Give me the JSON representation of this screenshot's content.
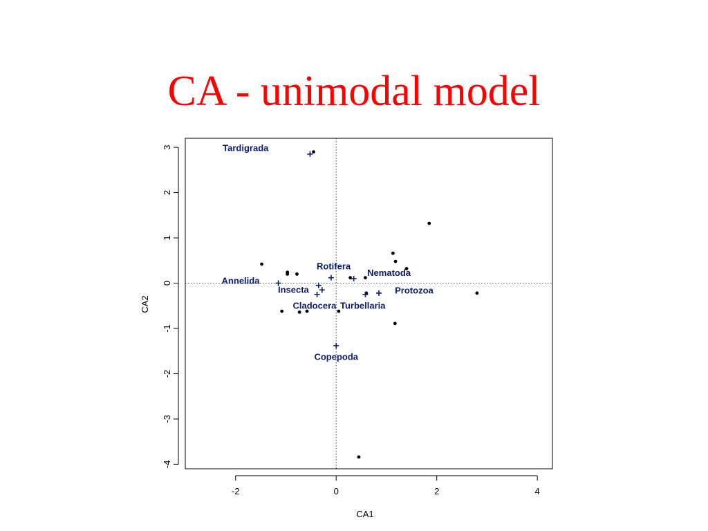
{
  "slide": {
    "title": "CA - unimodal model",
    "title_color": "#ff0000"
  },
  "chart_data": {
    "type": "scatter",
    "title": "",
    "xlabel": "CA1",
    "ylabel": "CA2",
    "xlim": [
      -3.0,
      4.3
    ],
    "ylim": [
      -4.1,
      3.2
    ],
    "x_ticks": [
      -2,
      0,
      2,
      4
    ],
    "x_tick_labels": [
      "-2",
      "0",
      "2",
      "4"
    ],
    "y_ticks": [
      -4,
      -3,
      -2,
      -1,
      0,
      1,
      2,
      3
    ],
    "y_tick_labels": [
      "-4",
      "-3",
      "-2",
      "-1",
      "0",
      "1",
      "2",
      "3"
    ],
    "reference_lines": {
      "x": 0,
      "y": 0,
      "style": "dotted"
    },
    "grid": false,
    "species_color": "#0a1a6e",
    "site_color": "#000000",
    "series": [
      {
        "name": "",
        "marker": "point",
        "points": [
          {
            "x": -0.45,
            "y": 2.9
          },
          {
            "x": 1.85,
            "y": 1.32
          },
          {
            "x": 1.13,
            "y": 0.66
          },
          {
            "x": 1.18,
            "y": 0.48
          },
          {
            "x": 1.4,
            "y": 0.32
          },
          {
            "x": -1.48,
            "y": 0.42
          },
          {
            "x": -0.97,
            "y": 0.24
          },
          {
            "x": -0.97,
            "y": 0.2
          },
          {
            "x": -0.78,
            "y": 0.2
          },
          {
            "x": 0.28,
            "y": 0.12
          },
          {
            "x": 0.58,
            "y": 0.12
          },
          {
            "x": 0.6,
            "y": -0.22
          },
          {
            "x": 2.8,
            "y": -0.22
          },
          {
            "x": -1.08,
            "y": -0.62
          },
          {
            "x": -0.73,
            "y": -0.64
          },
          {
            "x": -0.58,
            "y": -0.62
          },
          {
            "x": 0.05,
            "y": -0.62
          },
          {
            "x": 1.17,
            "y": -0.89
          },
          {
            "x": 0.45,
            "y": -3.84
          }
        ]
      },
      {
        "name": "",
        "marker": "plus",
        "points": [
          {
            "label": "Tardigrada",
            "x": -0.52,
            "y": 2.85,
            "label_dx": -1.28,
            "label_dy": 0.13
          },
          {
            "label": "Rotifera",
            "x": -0.1,
            "y": 0.12,
            "label_dx": 0.05,
            "label_dy": 0.25
          },
          {
            "label": "Nematoda",
            "x": 0.35,
            "y": 0.1,
            "label_dx": 0.7,
            "label_dy": 0.12
          },
          {
            "label": "Annelida",
            "x": -1.15,
            "y": 0.0,
            "label_dx": -0.75,
            "label_dy": 0.05
          },
          {
            "label": "Insecta",
            "x": -0.35,
            "y": -0.05,
            "label_dx": -0.5,
            "label_dy": -0.1
          },
          {
            "label": "",
            "x": -0.28,
            "y": -0.15,
            "label_dx": 0,
            "label_dy": 0
          },
          {
            "label": "Cladocera",
            "x": -0.38,
            "y": -0.25,
            "label_dx": -0.05,
            "label_dy": -0.25
          },
          {
            "label": "Protozoa",
            "x": 0.85,
            "y": -0.22,
            "label_dx": 0.7,
            "label_dy": 0.05
          },
          {
            "label": "Turbellaria",
            "x": 0.58,
            "y": -0.25,
            "label_dx": -0.05,
            "label_dy": -0.25
          },
          {
            "label": "Copepoda",
            "x": 0.0,
            "y": -1.38,
            "label_dx": 0.0,
            "label_dy": -0.25
          }
        ]
      }
    ]
  }
}
